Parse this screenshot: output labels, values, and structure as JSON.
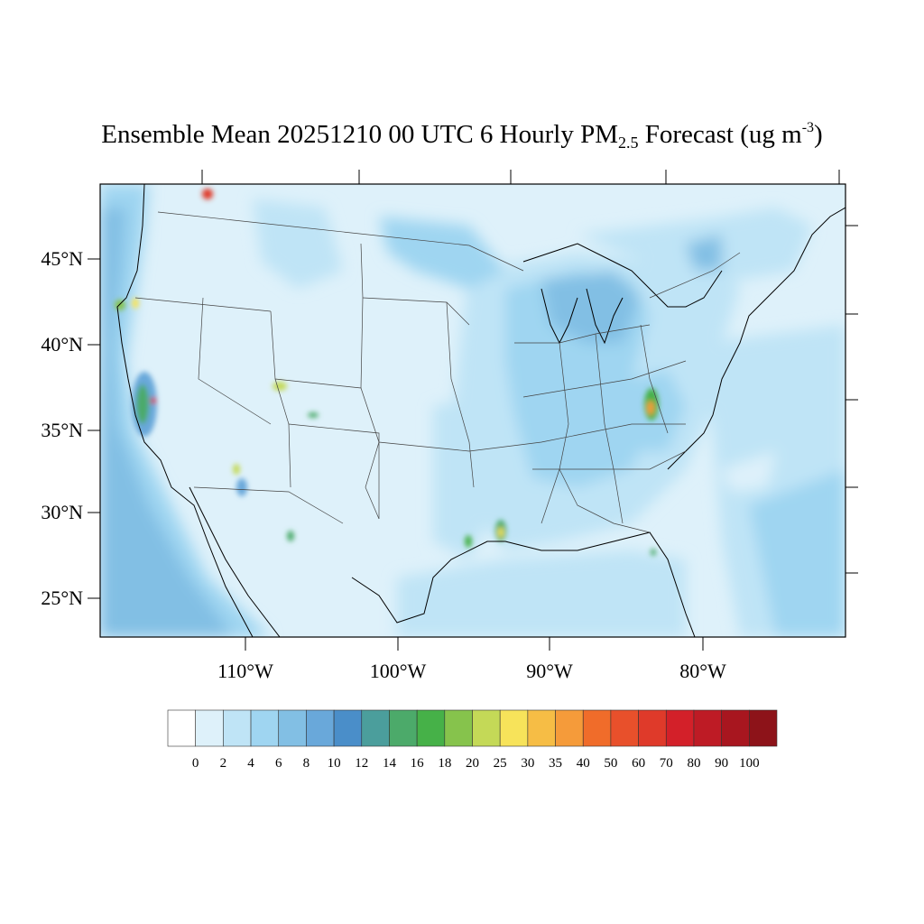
{
  "title": {
    "prefix": "Ensemble Mean 20251210 00 UTC 6 Hourly PM",
    "subscript": "2.5",
    "middle": " Forecast (ug m",
    "superscript": "-3",
    "suffix": ")"
  },
  "axes": {
    "lat_labels": [
      "45°N",
      "40°N",
      "35°N",
      "30°N",
      "25°N"
    ],
    "lon_labels": [
      "110°W",
      "100°W",
      "90°W",
      "80°W"
    ]
  },
  "colorbar": {
    "labels": [
      "0",
      "2",
      "4",
      "6",
      "8",
      "10",
      "12",
      "14",
      "16",
      "18",
      "20",
      "25",
      "30",
      "35",
      "40",
      "50",
      "60",
      "70",
      "80",
      "90",
      "100"
    ],
    "colors": [
      "#ffffff",
      "#def1fa",
      "#bfe4f6",
      "#9fd5f1",
      "#82bfe4",
      "#69a8da",
      "#4a8ec9",
      "#4b9e9c",
      "#4caa6a",
      "#46b148",
      "#86c34c",
      "#c4d957",
      "#f7e35a",
      "#f6bd45",
      "#f59b3a",
      "#f06c2a",
      "#e8502b",
      "#df3a2a",
      "#d32029",
      "#be1b25",
      "#a8161f",
      "#8d1319"
    ]
  },
  "map": {
    "background_color": "#def1fa",
    "coast_color": "#000000",
    "hotspots": [
      {
        "name": "n-california-valley",
        "level": 16
      },
      {
        "name": "n-california-fire",
        "level": 100
      },
      {
        "name": "oregon-coast",
        "level": 30
      },
      {
        "name": "utah-hotspot",
        "level": 30
      },
      {
        "name": "colorado-hotspot",
        "level": 16
      },
      {
        "name": "arizona-hotspot",
        "level": 25
      },
      {
        "name": "new-mexico-hotspot",
        "level": 16
      },
      {
        "name": "louisiana-hotspot",
        "level": 30
      },
      {
        "name": "east-texas-hotspot",
        "level": 18
      },
      {
        "name": "virginia-hotspot",
        "level": 50
      },
      {
        "name": "florida-hotspot",
        "level": 16
      },
      {
        "name": "bc-hotspot",
        "level": 100
      }
    ]
  }
}
